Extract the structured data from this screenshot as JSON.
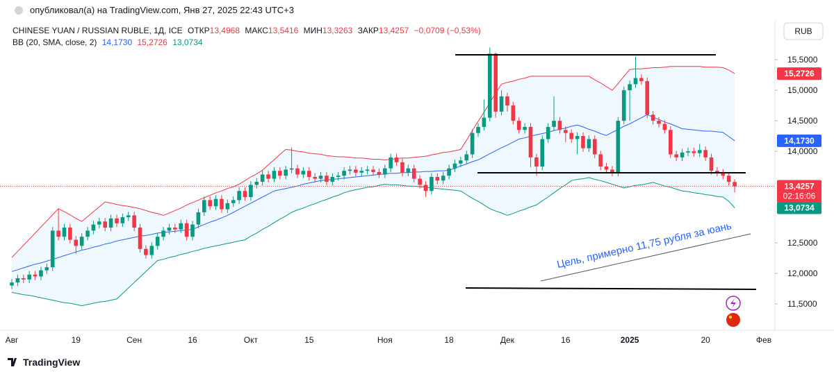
{
  "header": {
    "published": "опубликовал(а) на TradingView.com, Янв 27, 2025 22:43 UTC+3",
    "currency": "RUB",
    "footer": "TradingView"
  },
  "chart_data": {
    "type": "candlestick",
    "title": "CHINESE YUAN / RUSSIAN RUBLE, 1Д, ICE",
    "ohlc_legend": {
      "open_label": "ОТКР",
      "open": "13,4968",
      "high_label": "МАКС",
      "high": "13,5416",
      "low_label": "МИН",
      "low": "13,3263",
      "close_label": "ЗАКР",
      "close": "13,4257",
      "change": "−0,0709 (−0,53%)"
    },
    "price_labels": {
      "close": "13,4257",
      "countdown": "02:16:06"
    },
    "annotation": "Цель, примерно 11,75 рубля за юань",
    "up_color": "#089981",
    "down_color": "#f23645",
    "categories": [
      "Авг",
      null,
      null,
      null,
      null,
      null,
      null,
      null,
      null,
      null,
      null,
      "19",
      null,
      null,
      null,
      null,
      null,
      null,
      null,
      null,
      null,
      "Сен",
      null,
      null,
      null,
      null,
      null,
      null,
      null,
      null,
      null,
      "16",
      null,
      null,
      null,
      null,
      null,
      null,
      null,
      null,
      null,
      "Окт",
      null,
      null,
      null,
      null,
      null,
      null,
      null,
      null,
      null,
      "15",
      null,
      null,
      null,
      null,
      null,
      null,
      null,
      null,
      null,
      null,
      null,
      null,
      "Ноя",
      null,
      null,
      null,
      null,
      null,
      null,
      null,
      null,
      null,
      null,
      "18",
      null,
      null,
      null,
      null,
      null,
      null,
      null,
      null,
      null,
      "Дек",
      null,
      null,
      null,
      null,
      null,
      null,
      null,
      null,
      null,
      "16",
      null,
      null,
      null,
      null,
      null,
      null,
      null,
      null,
      null,
      null,
      "2025",
      null,
      null,
      null,
      null,
      null,
      null,
      null,
      null,
      null,
      null,
      null,
      null,
      "20",
      null,
      null,
      null,
      null,
      null,
      null,
      null,
      null,
      null,
      "Фев"
    ],
    "open": [
      11.8,
      11.85,
      11.92,
      11.9,
      11.98,
      11.95,
      12.05,
      12.1,
      12.7,
      12.6,
      12.75,
      12.55,
      12.45,
      12.6,
      12.7,
      12.8,
      12.85,
      12.75,
      12.9,
      12.82,
      12.92,
      12.95,
      12.75,
      12.4,
      12.3,
      12.45,
      12.6,
      12.7,
      12.75,
      12.72,
      12.82,
      12.6,
      12.8,
      13.0,
      13.2,
      13.1,
      13.22,
      13.05,
      13.15,
      13.2,
      13.35,
      13.25,
      13.45,
      13.5,
      13.62,
      13.55,
      13.68,
      13.6,
      13.7,
      13.72,
      13.62,
      13.68,
      13.58,
      13.55,
      13.6,
      13.5,
      13.58,
      13.6,
      13.68,
      13.7,
      13.65,
      13.68,
      13.7,
      13.66,
      13.62,
      13.72,
      13.9,
      13.82,
      13.65,
      13.72,
      13.55,
      13.45,
      13.35,
      13.58,
      13.52,
      13.6,
      13.72,
      13.8,
      13.85,
      13.95,
      14.3,
      14.4,
      14.55,
      15.6,
      14.65,
      14.9,
      14.75,
      14.5,
      14.35,
      14.4,
      13.9,
      13.75,
      14.2,
      14.4,
      14.5,
      14.35,
      14.3,
      14.2,
      14.25,
      14.05,
      14.2,
      13.95,
      13.75,
      13.7,
      13.65,
      14.5,
      15.0,
      15.1,
      15.2,
      15.15,
      14.6,
      14.5,
      14.45,
      14.35,
      13.95,
      13.9,
      13.98,
      14.0,
      13.97,
      14.02,
      13.9,
      13.68,
      13.65,
      13.6,
      13.4968,
      null,
      null,
      null,
      null,
      null
    ],
    "high": [
      11.91,
      11.98,
      11.98,
      12.04,
      12.04,
      12.11,
      12.16,
      12.76,
      13.06,
      12.81,
      12.81,
      12.61,
      12.66,
      12.76,
      12.86,
      12.91,
      12.91,
      12.96,
      12.96,
      12.98,
      13.01,
      13.01,
      12.81,
      12.46,
      12.51,
      12.66,
      12.76,
      12.81,
      12.81,
      12.88,
      12.88,
      12.86,
      13.06,
      13.26,
      13.26,
      13.28,
      13.28,
      13.21,
      13.26,
      13.41,
      13.41,
      13.51,
      13.56,
      13.68,
      13.68,
      13.74,
      13.74,
      13.76,
      14.06,
      13.78,
      13.74,
      13.74,
      13.64,
      13.66,
      13.66,
      13.64,
      13.66,
      13.74,
      13.76,
      13.76,
      13.74,
      13.76,
      13.76,
      13.72,
      13.78,
      13.96,
      13.96,
      13.88,
      13.78,
      13.78,
      13.61,
      13.51,
      13.64,
      13.64,
      13.66,
      13.78,
      13.86,
      13.91,
      14.01,
      14.36,
      14.46,
      14.85,
      15.7,
      15.62,
      15.0,
      14.96,
      14.81,
      14.56,
      14.46,
      14.46,
      13.96,
      14.26,
      14.46,
      14.9,
      14.56,
      14.41,
      14.36,
      14.31,
      14.31,
      14.26,
      14.26,
      14.01,
      13.81,
      13.76,
      14.56,
      15.06,
      15.16,
      15.55,
      15.26,
      15.21,
      14.66,
      14.56,
      14.51,
      14.41,
      14.01,
      14.04,
      14.06,
      14.06,
      14.12,
      14.08,
      13.96,
      13.74,
      13.71,
      13.66,
      13.5416,
      null,
      null,
      null,
      null,
      null
    ],
    "low": [
      11.74,
      11.79,
      11.84,
      11.84,
      11.89,
      11.89,
      11.99,
      12.04,
      12.54,
      12.54,
      12.49,
      12.32,
      12.39,
      12.54,
      12.64,
      12.74,
      12.69,
      12.69,
      12.76,
      12.76,
      12.86,
      12.69,
      12.34,
      12.24,
      12.24,
      12.39,
      12.54,
      12.64,
      12.66,
      12.66,
      12.54,
      12.54,
      12.74,
      12.94,
      13.04,
      13.04,
      12.99,
      12.99,
      13.09,
      13.14,
      13.19,
      13.19,
      13.39,
      13.44,
      13.49,
      13.49,
      13.54,
      13.54,
      13.64,
      13.56,
      13.56,
      13.52,
      13.49,
      13.49,
      13.44,
      13.44,
      13.52,
      13.54,
      13.62,
      13.59,
      13.59,
      13.62,
      13.6,
      13.56,
      13.56,
      13.66,
      13.76,
      13.59,
      13.59,
      13.49,
      13.39,
      13.25,
      13.29,
      13.46,
      13.46,
      13.54,
      13.66,
      13.74,
      13.79,
      13.89,
      14.24,
      14.34,
      14.49,
      14.55,
      14.59,
      14.65,
      14.44,
      14.29,
      14.29,
      13.74,
      13.6,
      13.69,
      14.14,
      14.34,
      14.29,
      14.15,
      14.14,
      13.95,
      13.99,
      13.99,
      13.89,
      13.69,
      13.64,
      13.59,
      13.59,
      14.44,
      14.5,
      15.04,
      15.09,
      14.54,
      14.44,
      14.39,
      14.29,
      13.89,
      13.84,
      13.84,
      13.92,
      13.91,
      13.91,
      13.84,
      13.62,
      13.59,
      13.54,
      13.44,
      13.3263,
      null,
      null,
      null,
      null,
      null
    ],
    "close": [
      11.85,
      11.92,
      11.9,
      11.98,
      11.95,
      12.05,
      12.1,
      12.7,
      12.6,
      12.75,
      12.55,
      12.45,
      12.6,
      12.7,
      12.8,
      12.85,
      12.75,
      12.9,
      12.82,
      12.92,
      12.95,
      12.75,
      12.4,
      12.3,
      12.45,
      12.6,
      12.7,
      12.75,
      12.72,
      12.82,
      12.6,
      12.8,
      13.0,
      13.2,
      13.1,
      13.22,
      13.05,
      13.15,
      13.2,
      13.35,
      13.25,
      13.45,
      13.5,
      13.62,
      13.55,
      13.68,
      13.6,
      13.7,
      13.72,
      13.62,
      13.68,
      13.58,
      13.55,
      13.6,
      13.5,
      13.58,
      13.6,
      13.68,
      13.7,
      13.65,
      13.68,
      13.7,
      13.66,
      13.62,
      13.72,
      13.9,
      13.82,
      13.65,
      13.72,
      13.55,
      13.45,
      13.35,
      13.58,
      13.52,
      13.6,
      13.72,
      13.8,
      13.85,
      13.95,
      14.3,
      14.4,
      14.55,
      15.6,
      14.65,
      14.9,
      14.75,
      14.5,
      14.35,
      14.4,
      13.9,
      13.75,
      14.2,
      14.4,
      14.5,
      14.35,
      14.3,
      14.2,
      14.25,
      14.05,
      14.2,
      13.95,
      13.75,
      13.7,
      13.65,
      14.5,
      15.0,
      15.1,
      15.2,
      15.15,
      14.6,
      14.5,
      14.45,
      14.35,
      13.95,
      13.9,
      13.98,
      14.0,
      13.97,
      14.02,
      13.9,
      13.68,
      13.65,
      13.6,
      13.5,
      13.4257,
      null,
      null,
      null,
      null,
      null
    ],
    "bands": {
      "name": "BB (20, SMA, close, 2)",
      "fill": "rgba(33,150,243,0.07)",
      "basis": {
        "color": "#2962ff",
        "last_label": "14,1730",
        "values": [
          12.03,
          12.06,
          12.09,
          12.12,
          12.15,
          12.17,
          12.2,
          12.23,
          12.26,
          12.29,
          12.32,
          12.35,
          12.38,
          12.4,
          12.43,
          12.45,
          12.48,
          12.5,
          12.53,
          12.55,
          12.57,
          12.59,
          12.61,
          12.62,
          12.64,
          12.66,
          12.67,
          12.68,
          12.69,
          12.7,
          12.71,
          12.72,
          12.76,
          12.8,
          12.84,
          12.87,
          12.91,
          12.95,
          13.0,
          13.05,
          13.1,
          13.15,
          13.2,
          13.25,
          13.3,
          13.35,
          13.37,
          13.39,
          13.41,
          13.43,
          13.46,
          13.48,
          13.5,
          13.52,
          13.53,
          13.54,
          13.55,
          13.56,
          13.57,
          13.58,
          13.59,
          13.6,
          13.61,
          13.62,
          13.63,
          13.64,
          13.64,
          13.65,
          13.65,
          13.66,
          13.66,
          13.67,
          13.67,
          13.68,
          13.68,
          13.69,
          13.72,
          13.76,
          13.79,
          13.83,
          13.86,
          13.91,
          13.96,
          14.01,
          14.06,
          14.1,
          14.15,
          14.2,
          14.22,
          14.25,
          14.27,
          14.29,
          14.31,
          14.34,
          14.36,
          14.38,
          14.41,
          14.43,
          14.4,
          14.36,
          14.33,
          14.29,
          14.26,
          14.31,
          14.36,
          14.41,
          14.45,
          14.5,
          14.55,
          14.6,
          14.56,
          14.52,
          14.48,
          14.45,
          14.41,
          14.37,
          14.36,
          14.35,
          14.34,
          14.33,
          14.33,
          14.32,
          14.31,
          14.24,
          14.173,
          null,
          null,
          null,
          null,
          null
        ]
      },
      "upper": {
        "color": "#f23645",
        "last_label": "15,2726",
        "values": [
          12.26,
          12.36,
          12.46,
          12.56,
          12.66,
          12.76,
          12.86,
          12.96,
          13.06,
          13.01,
          12.96,
          12.9,
          12.85,
          12.93,
          13.01,
          13.09,
          13.17,
          13.15,
          13.13,
          13.11,
          13.1,
          13.08,
          13.06,
          13.03,
          13.0,
          12.98,
          12.95,
          12.99,
          13.03,
          13.07,
          13.12,
          13.16,
          13.2,
          13.24,
          13.28,
          13.32,
          13.35,
          13.39,
          13.42,
          13.46,
          13.52,
          13.58,
          13.63,
          13.69,
          13.78,
          13.86,
          13.95,
          14.03,
          14.02,
          14.0,
          13.99,
          13.97,
          13.96,
          13.95,
          13.93,
          13.92,
          13.91,
          13.91,
          13.9,
          13.89,
          13.89,
          13.88,
          13.87,
          13.87,
          13.86,
          13.87,
          13.88,
          13.89,
          13.89,
          13.9,
          13.91,
          13.92,
          13.94,
          13.96,
          13.98,
          13.99,
          14.01,
          14.03,
          14.18,
          14.34,
          14.49,
          14.64,
          14.8,
          14.95,
          15.1,
          15.13,
          15.15,
          15.18,
          15.2,
          15.23,
          15.23,
          15.23,
          15.23,
          15.23,
          15.23,
          15.23,
          15.23,
          15.23,
          15.23,
          15.23,
          15.17,
          15.12,
          15.06,
          15.0,
          15.11,
          15.23,
          15.34,
          15.35,
          15.35,
          15.36,
          15.37,
          15.37,
          15.38,
          15.39,
          15.39,
          15.39,
          15.39,
          15.39,
          15.39,
          15.38,
          15.38,
          15.38,
          15.37,
          15.33,
          15.2726,
          null,
          null,
          null,
          null,
          null
        ]
      },
      "lower": {
        "color": "#089981",
        "last_label": "13,0734",
        "values": [
          11.69,
          11.67,
          11.65,
          11.64,
          11.62,
          11.6,
          11.58,
          11.56,
          11.54,
          11.52,
          11.51,
          11.49,
          11.47,
          11.49,
          11.51,
          11.53,
          11.54,
          11.56,
          11.58,
          11.67,
          11.76,
          11.85,
          11.94,
          12.03,
          12.12,
          12.21,
          12.23,
          12.26,
          12.28,
          12.31,
          12.33,
          12.36,
          12.38,
          12.41,
          12.43,
          12.45,
          12.47,
          12.49,
          12.51,
          12.53,
          12.55,
          12.61,
          12.66,
          12.72,
          12.77,
          12.83,
          12.89,
          12.94,
          13.0,
          13.04,
          13.07,
          13.11,
          13.14,
          13.18,
          13.21,
          13.25,
          13.28,
          13.32,
          13.35,
          13.37,
          13.39,
          13.41,
          13.42,
          13.44,
          13.46,
          13.45,
          13.45,
          13.44,
          13.43,
          13.43,
          13.42,
          13.41,
          13.4,
          13.39,
          13.38,
          13.37,
          13.36,
          13.35,
          13.29,
          13.23,
          13.18,
          13.12,
          13.06,
          13.02,
          12.99,
          12.95,
          12.98,
          13.02,
          13.05,
          13.09,
          13.12,
          13.19,
          13.25,
          13.32,
          13.39,
          13.45,
          13.52,
          13.54,
          13.55,
          13.57,
          13.54,
          13.52,
          13.49,
          13.46,
          13.43,
          13.4,
          13.42,
          13.44,
          13.45,
          13.47,
          13.49,
          13.46,
          13.43,
          13.41,
          13.38,
          13.35,
          13.34,
          13.32,
          13.31,
          13.29,
          13.28,
          13.26,
          13.25,
          13.18,
          13.0734,
          null,
          null,
          null,
          null,
          null
        ]
      }
    },
    "ylim": [
      11.067,
      16.138
    ],
    "yticks": [
      {
        "value": 11.5,
        "label": "11,5000"
      },
      {
        "value": 12,
        "label": "12,0000"
      },
      {
        "value": 12.5,
        "label": "12,5000"
      },
      {
        "value": 14,
        "label": "14,0000"
      },
      {
        "value": 14.5,
        "label": "14,5000"
      },
      {
        "value": 15,
        "label": "15,0000"
      },
      {
        "value": 15.5,
        "label": "15,5000"
      }
    ],
    "grid": false
  }
}
